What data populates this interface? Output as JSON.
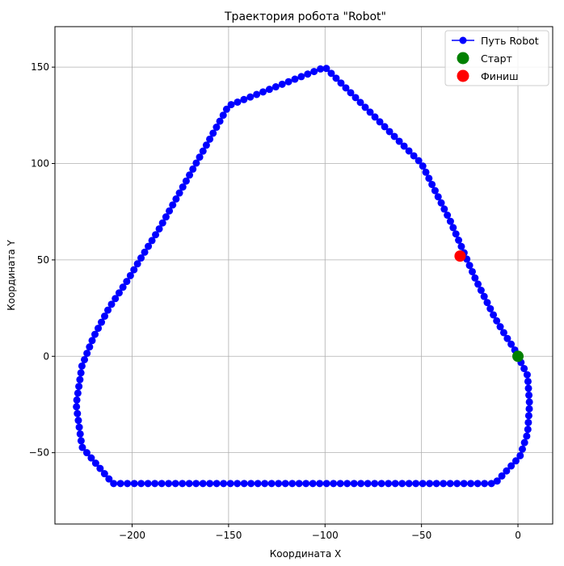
{
  "chart_data": {
    "type": "scatter",
    "title": "Траектория робота \"Robot\"",
    "xlabel": "Координата X",
    "ylabel": "Координата Y",
    "xlim": [
      -240,
      18
    ],
    "ylim": [
      -87,
      171
    ],
    "xticks": [
      {
        "value": -200,
        "label": "−200"
      },
      {
        "value": -150,
        "label": "−150"
      },
      {
        "value": -100,
        "label": "−100"
      },
      {
        "value": -50,
        "label": "−50"
      },
      {
        "value": 0,
        "label": "0"
      }
    ],
    "yticks": [
      {
        "value": -50,
        "label": "−50"
      },
      {
        "value": 0,
        "label": "0"
      },
      {
        "value": 50,
        "label": "50"
      },
      {
        "value": 100,
        "label": "100"
      },
      {
        "value": 150,
        "label": "150"
      }
    ],
    "grid": true,
    "legend_position": "top-right",
    "series": [
      {
        "name": "Путь Robot",
        "color": "#0000ff",
        "style": "line-with-markers",
        "x": [
          0,
          5,
          6,
          5,
          1,
          -12,
          -37,
          -62,
          -88,
          -108,
          -112,
          -118,
          -135,
          -160,
          -186,
          -210,
          -226,
          -229,
          -226,
          -220,
          -212,
          -202,
          -196,
          -186,
          -150,
          -100,
          -50,
          -35,
          -22,
          -12,
          -6,
          -2
        ],
        "y": [
          0,
          -10,
          -25,
          -40,
          -52,
          -66,
          -66,
          -66,
          -66,
          -66,
          -66,
          -66,
          -66,
          -66,
          -66,
          -66,
          -47,
          -25,
          -5,
          10,
          25,
          40,
          50,
          66,
          130,
          150,
          100,
          70,
          40,
          20,
          10,
          4
        ]
      },
      {
        "name": "Старт",
        "color": "#008000",
        "style": "marker",
        "x": [
          0
        ],
        "y": [
          0
        ]
      },
      {
        "name": "Финиш",
        "color": "#ff0000",
        "style": "marker",
        "x": [
          -30
        ],
        "y": [
          52
        ]
      }
    ]
  }
}
